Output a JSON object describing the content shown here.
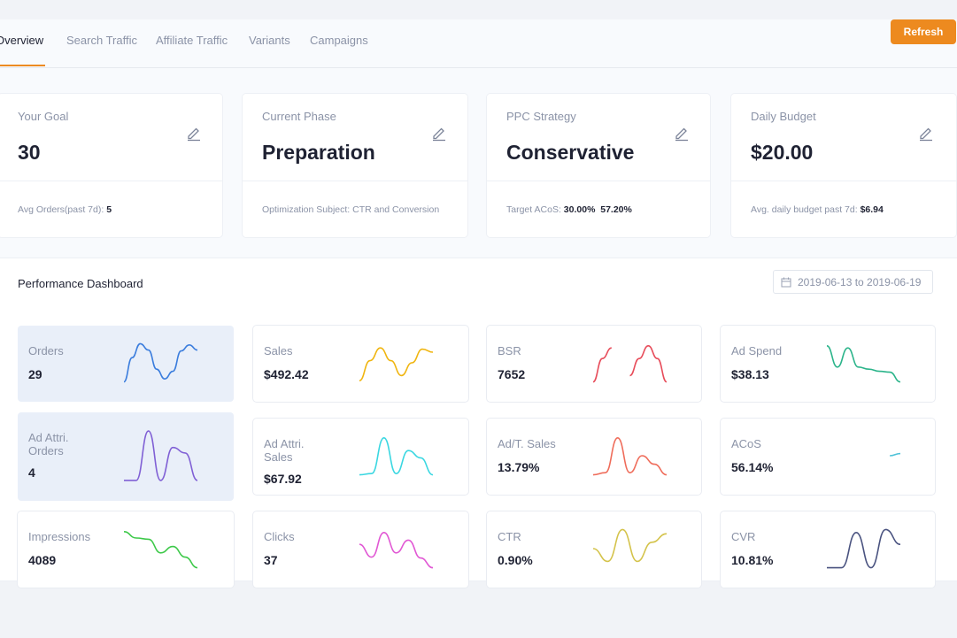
{
  "tabs": [
    "Overview",
    "Search Traffic",
    "Affiliate Traffic",
    "Variants",
    "Campaigns"
  ],
  "refresh_label": "Refresh",
  "cards": {
    "goal": {
      "label": "Your Goal",
      "value": "30",
      "foot_label": "Avg Orders(past 7d):",
      "foot_value": "5"
    },
    "phase": {
      "label": "Current Phase",
      "value": "Preparation",
      "foot_label": "Optimization Subject: CTR and Conversion",
      "foot_value": ""
    },
    "ppc": {
      "label": "PPC Strategy",
      "value": "Conservative",
      "foot_label": "Target ACoS:",
      "foot_value": "30.00%  57.20%"
    },
    "budget": {
      "label": "Daily Budget",
      "value": "$20.00",
      "foot_label": "Avg. daily budget past 7d:",
      "foot_value": "$6.94"
    }
  },
  "dashboard": {
    "title": "Performance Dashboard",
    "date_range": "2019-06-13 to 2019-06-19"
  },
  "metrics": [
    {
      "name": "Orders",
      "value": "29",
      "color": "#3b7ddd",
      "selected": true,
      "spark": [
        0.05,
        0.62,
        0.95,
        0.8,
        0.35,
        0.12,
        0.3,
        0.78,
        0.92,
        0.8
      ]
    },
    {
      "name": "Sales",
      "value": "$492.42",
      "color": "#f0b50f",
      "selected": false,
      "spark": [
        0.08,
        0.55,
        0.85,
        0.55,
        0.2,
        0.5,
        0.82,
        0.75
      ]
    },
    {
      "name": "BSR",
      "value": "7652",
      "color": "#e74c5a",
      "selected": false,
      "spark": [
        0.05,
        0.6,
        0.85,
        null,
        0.2,
        0.6,
        0.9,
        0.6,
        0.05
      ]
    },
    {
      "name": "Ad Spend",
      "value": "$38.13",
      "color": "#2bb48a",
      "selected": false,
      "spark": [
        0.9,
        0.4,
        0.85,
        0.4,
        0.35,
        0.3,
        0.28,
        0.05
      ]
    },
    {
      "name": "Ad Attri. Orders",
      "value": "4",
      "color": "#8060d5",
      "selected": true,
      "spark": [
        0.05,
        0.05,
        0.95,
        0.05,
        0.65,
        0.55,
        0.05
      ]
    },
    {
      "name": "Ad Attri. Sales",
      "value": "$67.92",
      "color": "#3ad7e1",
      "selected": false,
      "spark": [
        0.05,
        0.08,
        0.92,
        0.08,
        0.62,
        0.45,
        0.05
      ]
    },
    {
      "name": "Ad/T. Sales",
      "value": "13.79%",
      "color": "#ef6c5a",
      "selected": false,
      "spark": [
        0.05,
        0.1,
        0.92,
        0.1,
        0.5,
        0.3,
        0.05
      ]
    },
    {
      "name": "ACoS",
      "value": "56.14%",
      "color": "#4fc2d8",
      "selected": false,
      "spark": [
        null,
        null,
        null,
        null,
        null,
        null,
        0.5,
        0.55
      ]
    },
    {
      "name": "Impressions",
      "value": "4089",
      "color": "#3ec94a",
      "selected": false,
      "spark": [
        0.9,
        0.75,
        0.72,
        0.4,
        0.55,
        0.3,
        0.05
      ]
    },
    {
      "name": "Clicks",
      "value": "37",
      "color": "#e158d4",
      "selected": false,
      "spark": [
        0.6,
        0.3,
        0.88,
        0.4,
        0.7,
        0.28,
        0.05
      ]
    },
    {
      "name": "CTR",
      "value": "0.90%",
      "color": "#d4c34b",
      "selected": false,
      "spark": [
        0.5,
        0.2,
        0.95,
        0.2,
        0.65,
        0.85
      ]
    },
    {
      "name": "CVR",
      "value": "10.81%",
      "color": "#4a5380",
      "selected": false,
      "spark": [
        0.05,
        0.05,
        0.88,
        0.05,
        0.95,
        0.6
      ]
    }
  ]
}
